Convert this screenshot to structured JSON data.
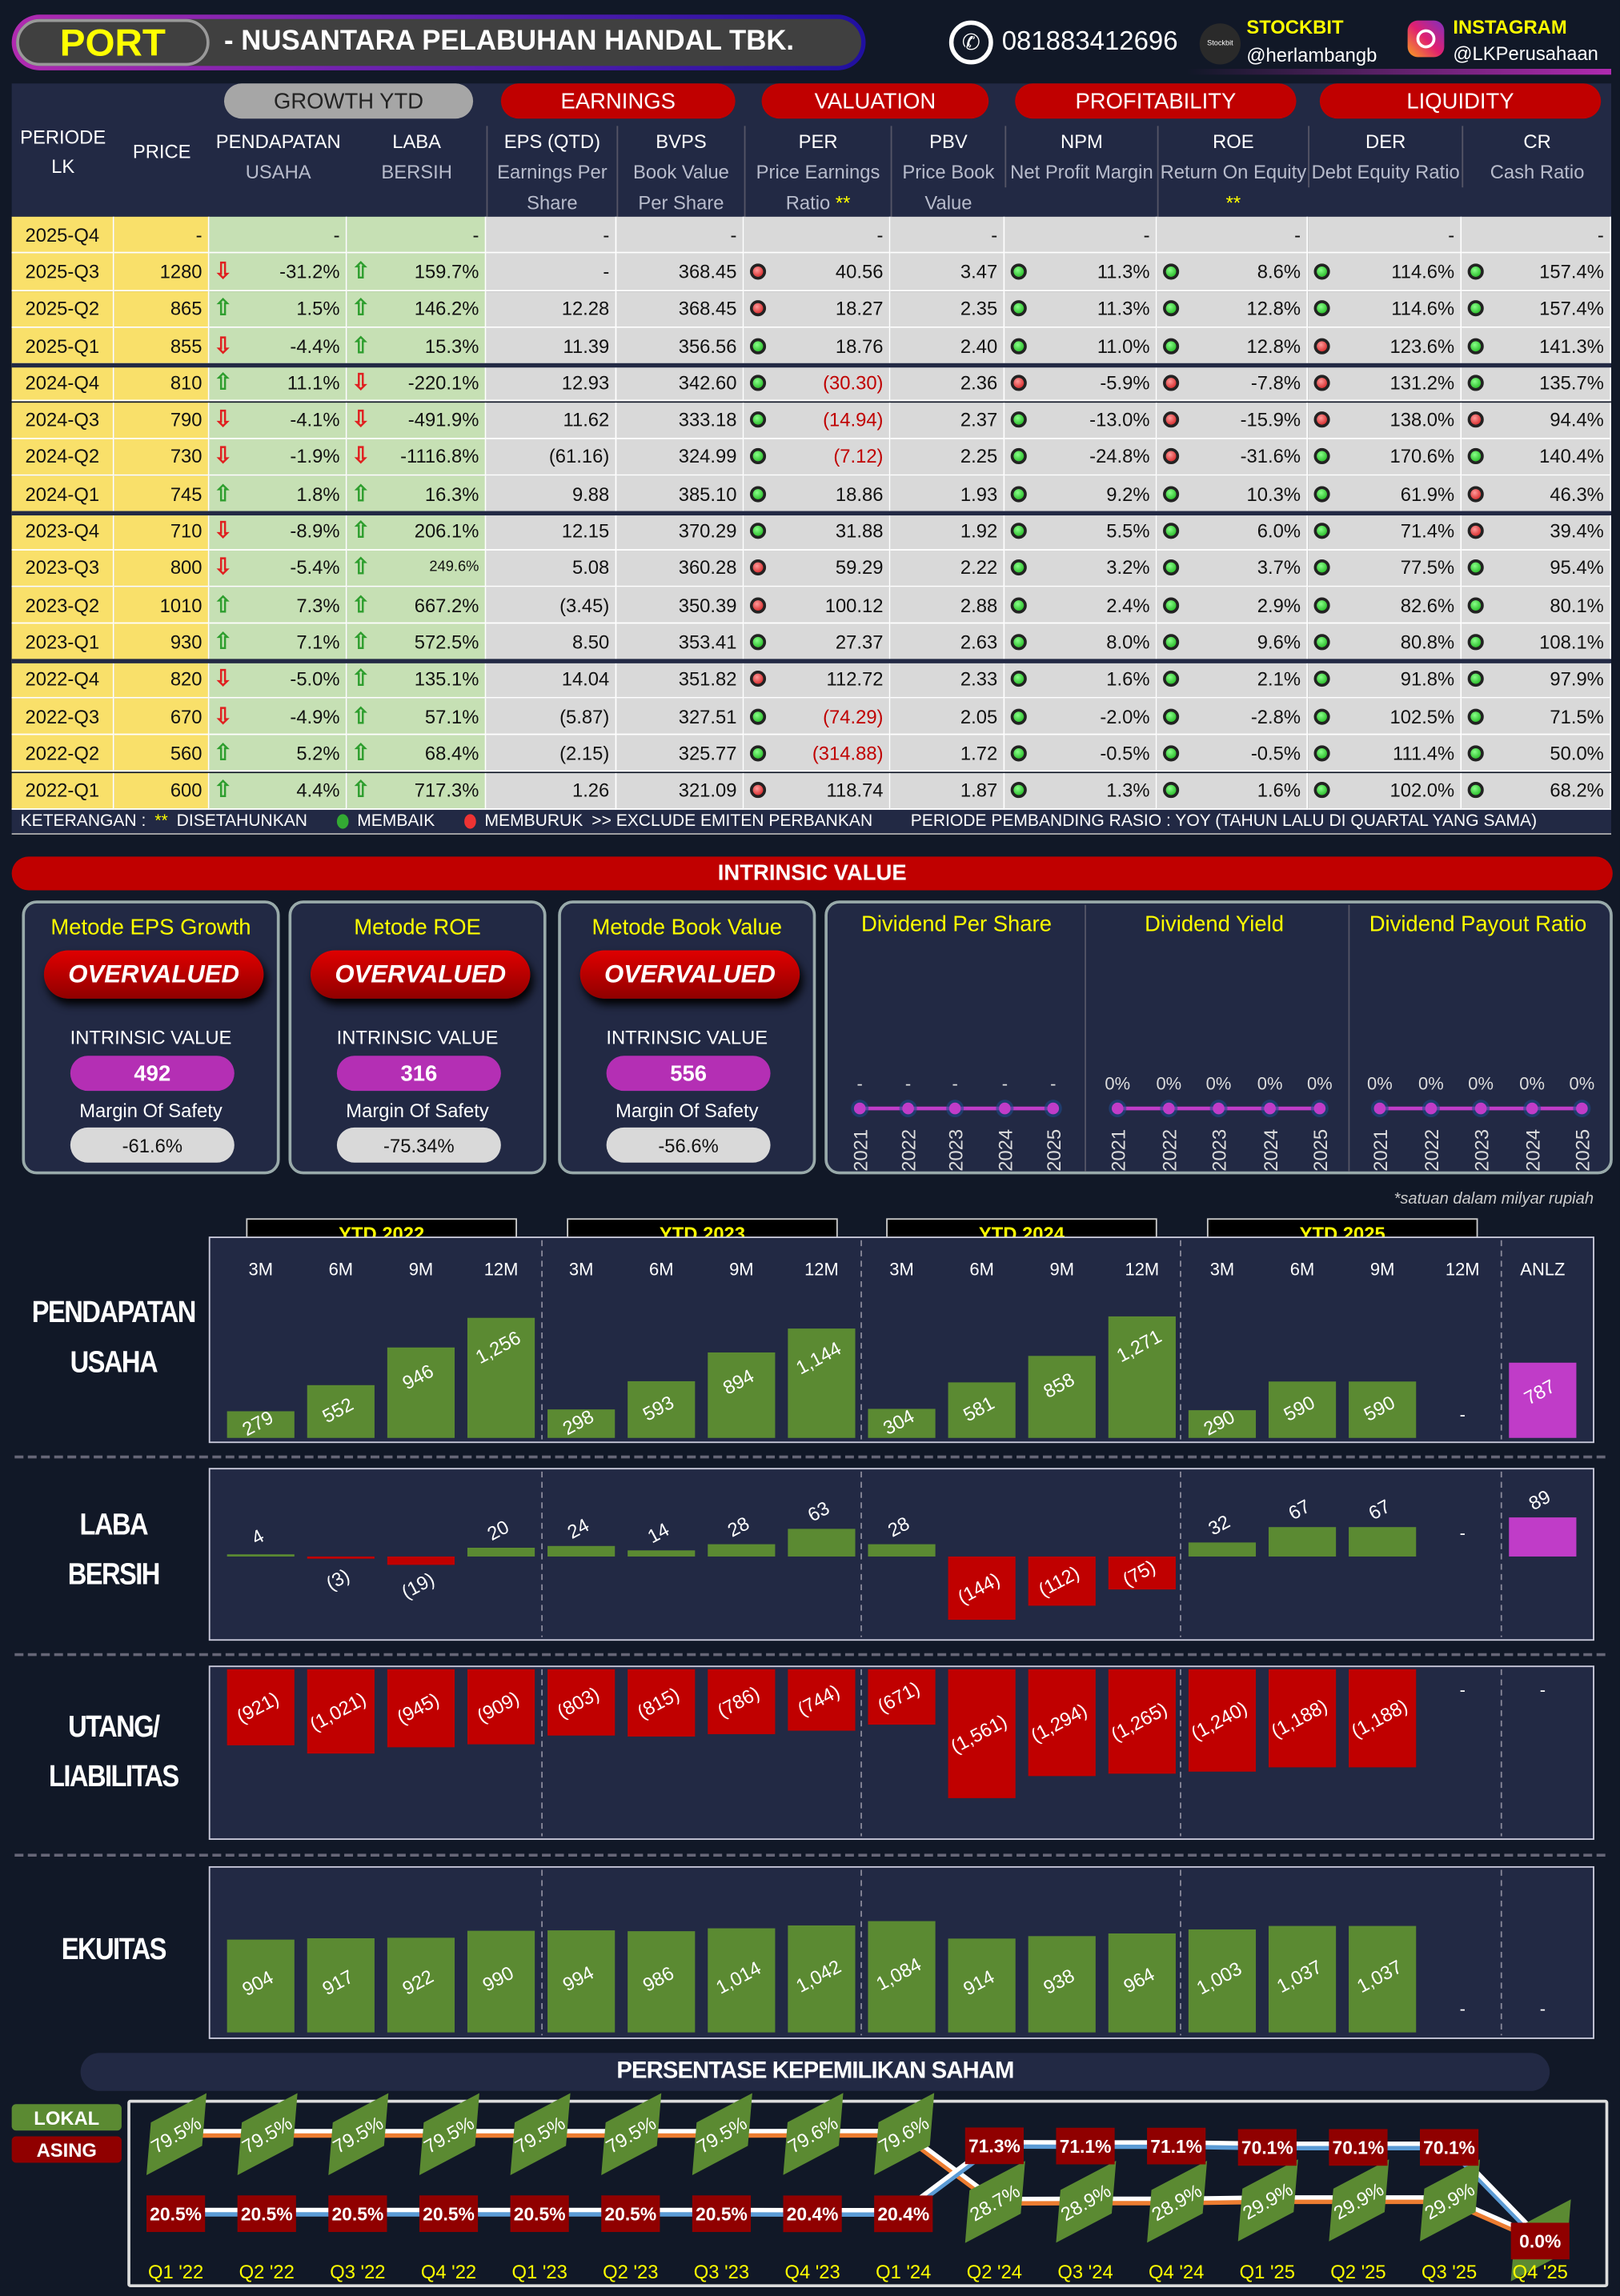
{
  "header": {
    "ticker": "PORT",
    "company": "- NUSANTARA PELABUHAN HANDAL TBK.",
    "phone": "081883412696",
    "stockbit_label": "STOCKBIT",
    "stockbit_handle": "@herlambangb",
    "instagram_label": "INSTAGRAM",
    "instagram_handle": "@LKPerusahaan"
  },
  "table": {
    "groups": [
      "GROWTH YTD",
      "EARNINGS",
      "VALUATION",
      "PROFITABILITY",
      "LIQUIDITY"
    ],
    "col_periode": [
      "PERIODE",
      "LK"
    ],
    "col_price": "PRICE",
    "columns": [
      {
        "t": "PENDAPATAN",
        "s": "USAHA"
      },
      {
        "t": "LABA",
        "s": "BERSIH"
      },
      {
        "t": "EPS (QTD)",
        "s": "Earnings Per Share"
      },
      {
        "t": "BVPS",
        "s": "Book Value Per Share"
      },
      {
        "t": "PER",
        "s": "Price Earnings Ratio",
        "star": "**"
      },
      {
        "t": "PBV",
        "s": "Price Book Value"
      },
      {
        "t": "NPM",
        "s": "Net Profit Margin"
      },
      {
        "t": "ROE",
        "s": "Return On Equity",
        "star": "**"
      },
      {
        "t": "DER",
        "s": "Debt Equity Ratio"
      },
      {
        "t": "CR",
        "s": "Cash Ratio"
      }
    ],
    "rows": [
      [
        "2025-Q4",
        "-",
        [
          "",
          "-"
        ],
        [
          "",
          "-"
        ],
        "-",
        "-",
        [
          "",
          "-"
        ],
        "-",
        [
          "",
          "-"
        ],
        [
          "",
          "-"
        ],
        [
          "",
          "-"
        ],
        [
          "",
          "-"
        ]
      ],
      [
        "2025-Q3",
        "1280",
        [
          "down",
          "-31.2%"
        ],
        [
          "up",
          "159.7%"
        ],
        "-",
        "368.45",
        [
          "red",
          "40.56"
        ],
        "3.47",
        [
          "green",
          "11.3%"
        ],
        [
          "green",
          "8.6%"
        ],
        [
          "green",
          "114.6%"
        ],
        [
          "green",
          "157.4%"
        ]
      ],
      [
        "2025-Q2",
        "865",
        [
          "up",
          "1.5%"
        ],
        [
          "up",
          "146.2%"
        ],
        "12.28",
        "368.45",
        [
          "red",
          "18.27"
        ],
        "2.35",
        [
          "green",
          "11.3%"
        ],
        [
          "green",
          "12.8%"
        ],
        [
          "green",
          "114.6%"
        ],
        [
          "green",
          "157.4%"
        ]
      ],
      [
        "2025-Q1",
        "855",
        [
          "down",
          "-4.4%"
        ],
        [
          "up",
          "15.3%"
        ],
        "11.39",
        "356.56",
        [
          "green",
          "18.76"
        ],
        "2.40",
        [
          "green",
          "11.0%"
        ],
        [
          "green",
          "12.8%"
        ],
        [
          "red",
          "123.6%"
        ],
        [
          "green",
          "141.3%"
        ]
      ],
      [
        "2024-Q4",
        "810",
        [
          "up",
          "11.1%"
        ],
        [
          "down",
          "-220.1%"
        ],
        "12.93",
        "342.60",
        [
          "green",
          "(30.30)"
        ],
        "2.36",
        [
          "red",
          "-5.9%"
        ],
        [
          "red",
          "-7.8%"
        ],
        [
          "red",
          "131.2%"
        ],
        [
          "green",
          "135.7%"
        ]
      ],
      [
        "2024-Q3",
        "790",
        [
          "down",
          "-4.1%"
        ],
        [
          "down",
          "-491.9%"
        ],
        "11.62",
        "333.18",
        [
          "green",
          "(14.94)"
        ],
        "2.37",
        [
          "green",
          "-13.0%"
        ],
        [
          "red",
          "-15.9%"
        ],
        [
          "red",
          "138.0%"
        ],
        [
          "red",
          "94.4%"
        ]
      ],
      [
        "2024-Q2",
        "730",
        [
          "down",
          "-1.9%"
        ],
        [
          "down",
          "-1116.8%"
        ],
        "(61.16)",
        "324.99",
        [
          "green",
          "(7.12)"
        ],
        "2.25",
        [
          "green",
          "-24.8%"
        ],
        [
          "red",
          "-31.6%"
        ],
        [
          "green",
          "170.6%"
        ],
        [
          "green",
          "140.4%"
        ]
      ],
      [
        "2024-Q1",
        "745",
        [
          "up",
          "1.8%"
        ],
        [
          "up",
          "16.3%"
        ],
        "9.88",
        "385.10",
        [
          "green",
          "18.86"
        ],
        "1.93",
        [
          "green",
          "9.2%"
        ],
        [
          "green",
          "10.3%"
        ],
        [
          "green",
          "61.9%"
        ],
        [
          "red",
          "46.3%"
        ]
      ],
      [
        "2023-Q4",
        "710",
        [
          "down",
          "-8.9%"
        ],
        [
          "up",
          "206.1%"
        ],
        "12.15",
        "370.29",
        [
          "green",
          "31.88"
        ],
        "1.92",
        [
          "green",
          "5.5%"
        ],
        [
          "green",
          "6.0%"
        ],
        [
          "green",
          "71.4%"
        ],
        [
          "red",
          "39.4%"
        ]
      ],
      [
        "2023-Q3",
        "800",
        [
          "down",
          "-5.4%"
        ],
        [
          "up",
          "249.6%"
        ],
        "5.08",
        "360.28",
        [
          "red",
          "59.29"
        ],
        "2.22",
        [
          "green",
          "3.2%"
        ],
        [
          "green",
          "3.7%"
        ],
        [
          "green",
          "77.5%"
        ],
        [
          "green",
          "95.4%"
        ]
      ],
      [
        "2023-Q2",
        "1010",
        [
          "up",
          "7.3%"
        ],
        [
          "up",
          "667.2%"
        ],
        "(3.45)",
        "350.39",
        [
          "red",
          "100.12"
        ],
        "2.88",
        [
          "green",
          "2.4%"
        ],
        [
          "green",
          "2.9%"
        ],
        [
          "green",
          "82.6%"
        ],
        [
          "green",
          "80.1%"
        ]
      ],
      [
        "2023-Q1",
        "930",
        [
          "up",
          "7.1%"
        ],
        [
          "up",
          "572.5%"
        ],
        "8.50",
        "353.41",
        [
          "green",
          "27.37"
        ],
        "2.63",
        [
          "green",
          "8.0%"
        ],
        [
          "green",
          "9.6%"
        ],
        [
          "green",
          "80.8%"
        ],
        [
          "green",
          "108.1%"
        ]
      ],
      [
        "2022-Q4",
        "820",
        [
          "down",
          "-5.0%"
        ],
        [
          "up",
          "135.1%"
        ],
        "14.04",
        "351.82",
        [
          "red",
          "112.72"
        ],
        "2.33",
        [
          "green",
          "1.6%"
        ],
        [
          "green",
          "2.1%"
        ],
        [
          "green",
          "91.8%"
        ],
        [
          "green",
          "97.9%"
        ]
      ],
      [
        "2022-Q3",
        "670",
        [
          "down",
          "-4.9%"
        ],
        [
          "up",
          "57.1%"
        ],
        "(5.87)",
        "327.51",
        [
          "green",
          "(74.29)"
        ],
        "2.05",
        [
          "green",
          "-2.0%"
        ],
        [
          "green",
          "-2.8%"
        ],
        [
          "green",
          "102.5%"
        ],
        [
          "green",
          "71.5%"
        ]
      ],
      [
        "2022-Q2",
        "560",
        [
          "up",
          "5.2%"
        ],
        [
          "up",
          "68.4%"
        ],
        "(2.15)",
        "325.77",
        [
          "green",
          "(314.88)"
        ],
        "1.72",
        [
          "green",
          "-0.5%"
        ],
        [
          "green",
          "-0.5%"
        ],
        [
          "green",
          "111.4%"
        ],
        [
          "green",
          "50.0%"
        ]
      ],
      [
        "2022-Q1",
        "600",
        [
          "up",
          "4.4%"
        ],
        [
          "up",
          "717.3%"
        ],
        "1.26",
        "321.09",
        [
          "red",
          "118.74"
        ],
        "1.87",
        [
          "green",
          "1.3%"
        ],
        [
          "green",
          "1.6%"
        ],
        [
          "green",
          "102.0%"
        ],
        [
          "green",
          "68.2%"
        ]
      ]
    ]
  },
  "legend": {
    "keterangan": "KETERANGAN :",
    "stars": "**",
    "disetahunkan": "DISETAHUNKAN",
    "membaik": "MEMBAIK",
    "memburuk": "MEMBURUK",
    "exclude": ">> EXCLUDE EMITEN PERBANKAN",
    "periode": "PERIODE PEMBANDING RASIO : YOY (TAHUN LALU DI QUARTAL YANG SAMA)"
  },
  "intrinsic": {
    "title": "INTRINSIC VALUE",
    "iv_label": "INTRINSIC VALUE",
    "mos_label": "Margin Of Safety",
    "methods": [
      {
        "name": "Metode EPS Growth",
        "status": "OVERVALUED",
        "value": "492",
        "mos": "-61.6%"
      },
      {
        "name": "Metode ROE",
        "status": "OVERVALUED",
        "value": "316",
        "mos": "-75.34%"
      },
      {
        "name": "Metode Book Value",
        "status": "OVERVALUED",
        "value": "556",
        "mos": "-56.6%"
      }
    ],
    "dividends": [
      {
        "title": "Dividend Per Share",
        "labels": [
          "-",
          "-",
          "-",
          "-",
          "-"
        ]
      },
      {
        "title": "Dividend Yield",
        "labels": [
          "0%",
          "0%",
          "0%",
          "0%",
          "0%"
        ]
      },
      {
        "title": "Dividend Payout Ratio",
        "labels": [
          "0%",
          "0%",
          "0%",
          "0%",
          "0%"
        ]
      }
    ],
    "years": [
      "2021",
      "2022",
      "2023",
      "2024",
      "2025"
    ]
  },
  "financials": {
    "note": "*satuan dalam milyar rupiah",
    "ytd": [
      "YTD 2022",
      "YTD 2023",
      "YTD 2024",
      "YTD 2025"
    ],
    "periods": [
      "3M",
      "6M",
      "9M",
      "12M",
      "3M",
      "6M",
      "9M",
      "12M",
      "3M",
      "6M",
      "9M",
      "12M",
      "3M",
      "6M",
      "9M",
      "12M",
      "ANLZ"
    ],
    "colors": {
      "green": "#5b8a32",
      "red": "#c00000",
      "magenta": "#c03cc8"
    }
  },
  "chart_data": [
    {
      "type": "bar",
      "title": "PENDAPATAN USAHA",
      "values": [
        279,
        552,
        946,
        1256,
        298,
        593,
        894,
        1144,
        304,
        581,
        858,
        1271,
        290,
        590,
        590,
        null,
        787
      ]
    },
    {
      "type": "bar",
      "title": "LABA BERSIH",
      "values": [
        4,
        -3,
        -19,
        20,
        24,
        14,
        28,
        63,
        28,
        -144,
        -112,
        -75,
        32,
        67,
        67,
        null,
        89
      ]
    },
    {
      "type": "bar",
      "title": "UTANG/ LIABILITAS",
      "values": [
        -921,
        -1021,
        -945,
        -909,
        -803,
        -815,
        -786,
        -744,
        -671,
        -1561,
        -1294,
        -1265,
        -1240,
        -1188,
        -1188,
        null,
        null
      ]
    },
    {
      "type": "bar",
      "title": "EKUITAS",
      "values": [
        904,
        917,
        922,
        990,
        994,
        986,
        1014,
        1042,
        1084,
        914,
        938,
        964,
        1003,
        1037,
        1037,
        null,
        null
      ]
    },
    {
      "type": "line",
      "title": "PERSENTASE KEPEMILIKAN SAHAM",
      "x": [
        "Q1 '22",
        "Q2 '22",
        "Q3 '22",
        "Q4 '22",
        "Q1 '23",
        "Q2 '23",
        "Q3 '23",
        "Q4 '23",
        "Q1 '24",
        "Q2 '24",
        "Q3 '24",
        "Q4 '24",
        "Q1 '25",
        "Q2 '25",
        "Q3 '25",
        "Q4 '25"
      ],
      "series": [
        {
          "name": "LOKAL",
          "values": [
            79.5,
            79.5,
            79.5,
            79.5,
            79.5,
            79.5,
            79.5,
            79.6,
            79.6,
            28.7,
            28.9,
            28.9,
            29.9,
            29.9,
            29.9,
            0.0
          ]
        },
        {
          "name": "ASING",
          "values": [
            20.5,
            20.5,
            20.5,
            20.5,
            20.5,
            20.5,
            20.5,
            20.4,
            20.4,
            71.3,
            71.1,
            71.1,
            70.1,
            70.1,
            70.1,
            0.0
          ]
        }
      ],
      "ylim": [
        0,
        100
      ]
    }
  ]
}
